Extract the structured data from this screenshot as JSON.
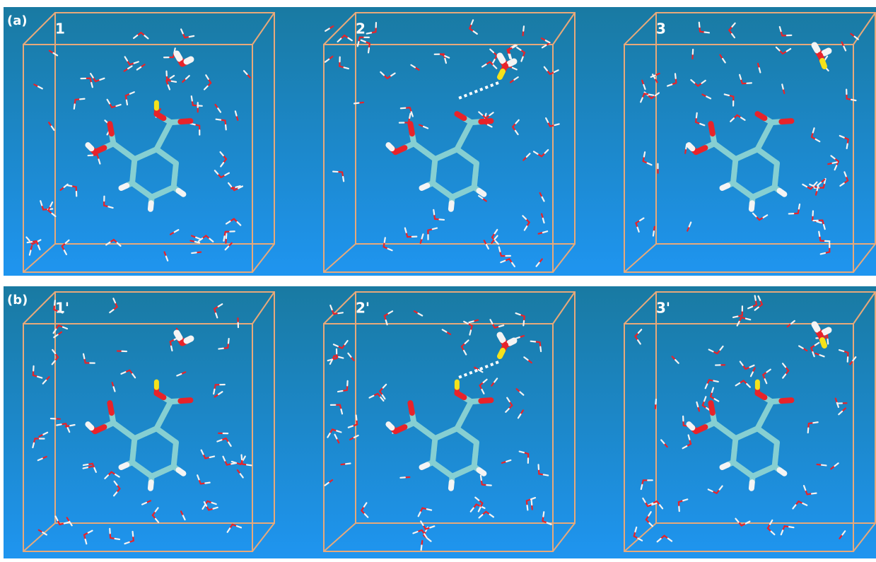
{
  "rows": [
    {
      "label": "(a)",
      "frames": [
        "1",
        "2",
        "3"
      ]
    },
    {
      "label": "(b)",
      "frames": [
        "1'",
        "2'",
        "3'"
      ]
    }
  ]
}
